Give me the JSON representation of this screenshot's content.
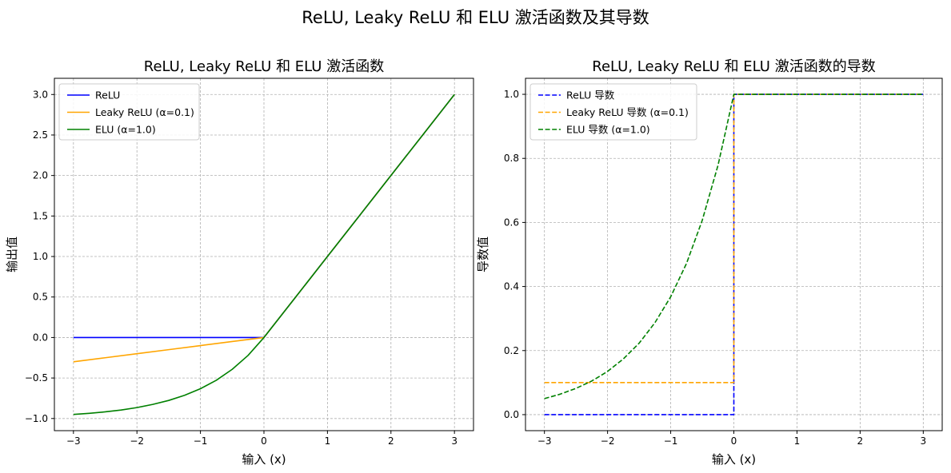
{
  "suptitle": "ReLU, Leaky ReLU 和 ELU 激活函数及其导数",
  "chart_data": [
    {
      "type": "line",
      "title": "ReLU, Leaky ReLU 和 ELU 激活函数",
      "xlabel": "输入 (x)",
      "ylabel": "输出值",
      "xlim": [
        -3.3,
        3.3
      ],
      "ylim": [
        -1.15,
        3.2
      ],
      "xticks": [
        -3,
        -2,
        -1,
        0,
        1,
        2,
        3
      ],
      "xtick_labels": [
        "−3",
        "−2",
        "−1",
        "0",
        "1",
        "2",
        "3"
      ],
      "yticks": [
        -1.0,
        -0.5,
        0.0,
        0.5,
        1.0,
        1.5,
        2.0,
        2.5,
        3.0
      ],
      "ytick_labels": [
        "−1.0",
        "−0.5",
        "0.0",
        "0.5",
        "1.0",
        "1.5",
        "2.0",
        "2.5",
        "3.0"
      ],
      "grid": true,
      "legend_position": "top-left",
      "series": [
        {
          "name": "ReLU",
          "color": "#0000ff",
          "dash": "solid",
          "x": [
            -3,
            -2.5,
            -2,
            -1.5,
            -1,
            -0.5,
            0,
            0.5,
            1,
            1.5,
            2,
            2.5,
            3
          ],
          "y": [
            0,
            0,
            0,
            0,
            0,
            0,
            0,
            0.5,
            1,
            1.5,
            2,
            2.5,
            3
          ]
        },
        {
          "name": "Leaky ReLU (α=0.1)",
          "color": "#ffa500",
          "dash": "solid",
          "x": [
            -3,
            -2.5,
            -2,
            -1.5,
            -1,
            -0.5,
            0,
            0.5,
            1,
            1.5,
            2,
            2.5,
            3
          ],
          "y": [
            -0.3,
            -0.25,
            -0.2,
            -0.15,
            -0.1,
            -0.05,
            0,
            0.5,
            1,
            1.5,
            2,
            2.5,
            3
          ]
        },
        {
          "name": "ELU (α=1.0)",
          "color": "#008000",
          "dash": "solid",
          "x": [
            -3,
            -2.75,
            -2.5,
            -2.25,
            -2,
            -1.75,
            -1.5,
            -1.25,
            -1,
            -0.75,
            -0.5,
            -0.25,
            0,
            0.5,
            1,
            1.5,
            2,
            2.5,
            3
          ],
          "y": [
            -0.95,
            -0.936,
            -0.918,
            -0.895,
            -0.865,
            -0.826,
            -0.777,
            -0.713,
            -0.632,
            -0.528,
            -0.393,
            -0.221,
            0,
            0.5,
            1,
            1.5,
            2,
            2.5,
            3
          ]
        }
      ]
    },
    {
      "type": "line",
      "title": "ReLU, Leaky ReLU 和 ELU 激活函数的导数",
      "xlabel": "输入 (x)",
      "ylabel": "导数值",
      "xlim": [
        -3.3,
        3.3
      ],
      "ylim": [
        -0.05,
        1.05
      ],
      "xticks": [
        -3,
        -2,
        -1,
        0,
        1,
        2,
        3
      ],
      "xtick_labels": [
        "−3",
        "−2",
        "−1",
        "0",
        "1",
        "2",
        "3"
      ],
      "yticks": [
        0.0,
        0.2,
        0.4,
        0.6,
        0.8,
        1.0
      ],
      "ytick_labels": [
        "0.0",
        "0.2",
        "0.4",
        "0.6",
        "0.8",
        "1.0"
      ],
      "grid": true,
      "legend_position": "top-left",
      "series": [
        {
          "name": "ReLU 导数",
          "color": "#0000ff",
          "dash": "dashed",
          "x": [
            -3,
            0,
            0,
            3
          ],
          "y": [
            0,
            0,
            1,
            1
          ]
        },
        {
          "name": "Leaky ReLU 导数 (α=0.1)",
          "color": "#ffa500",
          "dash": "dashed",
          "x": [
            -3,
            0,
            0,
            3
          ],
          "y": [
            0.1,
            0.1,
            1,
            1
          ]
        },
        {
          "name": "ELU 导数 (α=1.0)",
          "color": "#008000",
          "dash": "dashed",
          "x": [
            -3,
            -2.75,
            -2.5,
            -2.25,
            -2,
            -1.75,
            -1.5,
            -1.25,
            -1,
            -0.75,
            -0.5,
            -0.25,
            0,
            3
          ],
          "y": [
            0.05,
            0.064,
            0.082,
            0.105,
            0.135,
            0.174,
            0.223,
            0.287,
            0.368,
            0.472,
            0.607,
            0.779,
            1.0,
            1.0
          ]
        }
      ]
    }
  ]
}
